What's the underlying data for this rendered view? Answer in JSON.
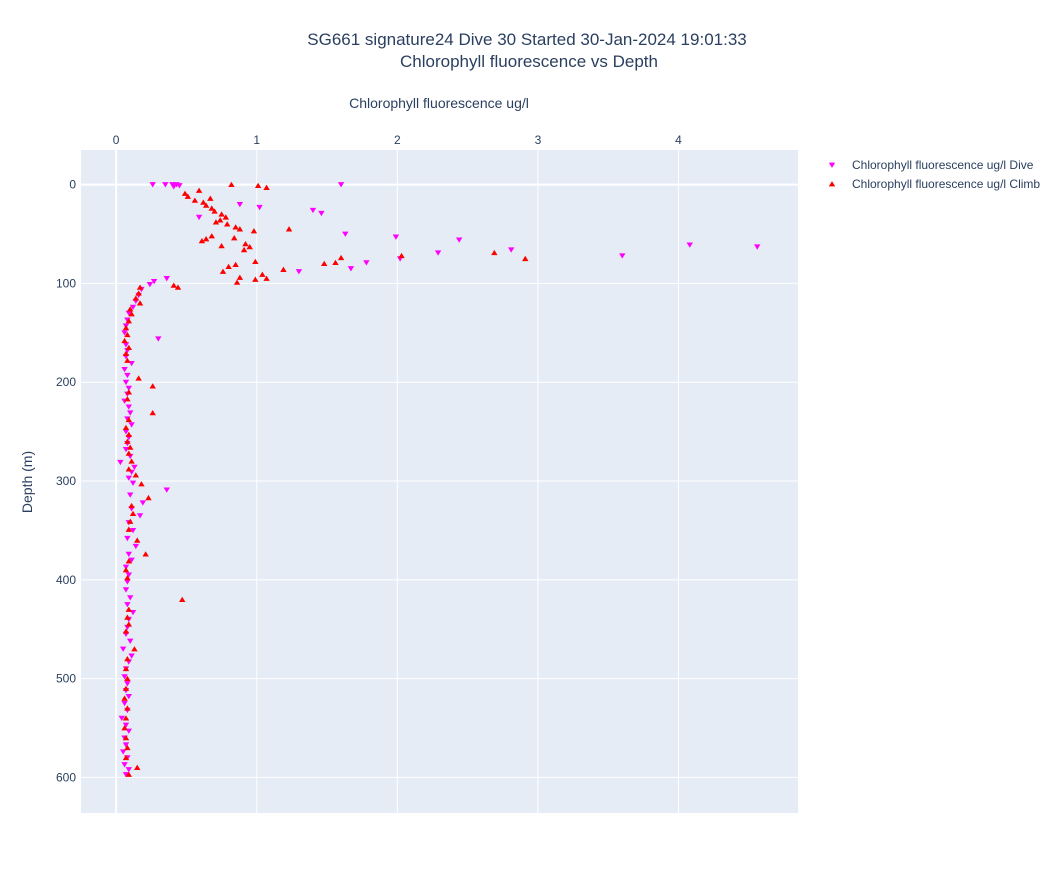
{
  "chart_data": {
    "type": "scatter",
    "title": "SG661 signature24 Dive 30 Started 30-Jan-2024 19:01:33",
    "subtitle": "Chlorophyll fluorescence vs Depth",
    "xlabel": "Chlorophyll fluorescence ug/l",
    "ylabel": "Depth (m)",
    "xlim": [
      -0.25,
      4.85
    ],
    "ylim": [
      -35,
      636
    ],
    "x_axis_position": "top",
    "y_axis_reversed": true,
    "grid": true,
    "legend_position": "top-right",
    "xticks": [
      0,
      1,
      2,
      3,
      4
    ],
    "yticks": [
      0,
      100,
      200,
      300,
      400,
      500,
      600
    ],
    "series": [
      {
        "name": "Chlorophyll fluorescence ug/l Dive",
        "color": "#ff00ff",
        "marker": "triangle-down",
        "points": [
          [
            0.26,
            0
          ],
          [
            0.35,
            0
          ],
          [
            0.4,
            0
          ],
          [
            0.41,
            2
          ],
          [
            0.43,
            0
          ],
          [
            0.45,
            1
          ],
          [
            1.6,
            0
          ],
          [
            0.88,
            20
          ],
          [
            1.02,
            23
          ],
          [
            1.4,
            26
          ],
          [
            1.46,
            29
          ],
          [
            0.59,
            33
          ],
          [
            1.63,
            50
          ],
          [
            1.99,
            53
          ],
          [
            2.44,
            56
          ],
          [
            4.08,
            61
          ],
          [
            4.56,
            63
          ],
          [
            2.81,
            66
          ],
          [
            2.29,
            69
          ],
          [
            3.6,
            72
          ],
          [
            2.02,
            75
          ],
          [
            1.78,
            79
          ],
          [
            1.67,
            85
          ],
          [
            1.3,
            88
          ],
          [
            0.36,
            95
          ],
          [
            0.27,
            98
          ],
          [
            0.24,
            101
          ],
          [
            0.18,
            106
          ],
          [
            0.16,
            112
          ],
          [
            0.14,
            118
          ],
          [
            0.12,
            124
          ],
          [
            0.09,
            130
          ],
          [
            0.08,
            137
          ],
          [
            0.07,
            143
          ],
          [
            0.06,
            150
          ],
          [
            0.3,
            156
          ],
          [
            0.07,
            162
          ],
          [
            0.08,
            168
          ],
          [
            0.07,
            174
          ],
          [
            0.11,
            181
          ],
          [
            0.06,
            187
          ],
          [
            0.08,
            193
          ],
          [
            0.07,
            200
          ],
          [
            0.09,
            206
          ],
          [
            0.08,
            212
          ],
          [
            0.06,
            219
          ],
          [
            0.09,
            225
          ],
          [
            0.1,
            231
          ],
          [
            0.08,
            237
          ],
          [
            0.11,
            243
          ],
          [
            0.07,
            250
          ],
          [
            0.09,
            256
          ],
          [
            0.08,
            262
          ],
          [
            0.07,
            268
          ],
          [
            0.1,
            275
          ],
          [
            0.03,
            281
          ],
          [
            0.13,
            286
          ],
          [
            0.11,
            291
          ],
          [
            0.09,
            297
          ],
          [
            0.12,
            302
          ],
          [
            0.36,
            309
          ],
          [
            0.1,
            314
          ],
          [
            0.19,
            322
          ],
          [
            0.11,
            328
          ],
          [
            0.17,
            335
          ],
          [
            0.09,
            342
          ],
          [
            0.12,
            350
          ],
          [
            0.08,
            358
          ],
          [
            0.14,
            366
          ],
          [
            0.09,
            374
          ],
          [
            0.11,
            380
          ],
          [
            0.07,
            387
          ],
          [
            0.09,
            395
          ],
          [
            0.08,
            402
          ],
          [
            0.07,
            410
          ],
          [
            0.1,
            418
          ],
          [
            0.08,
            425
          ],
          [
            0.12,
            433
          ],
          [
            0.09,
            440
          ],
          [
            0.08,
            448
          ],
          [
            0.07,
            455
          ],
          [
            0.1,
            462
          ],
          [
            0.05,
            470
          ],
          [
            0.11,
            477
          ],
          [
            0.09,
            483
          ],
          [
            0.07,
            490
          ],
          [
            0.06,
            498
          ],
          [
            0.08,
            505
          ],
          [
            0.07,
            512
          ],
          [
            0.09,
            518
          ],
          [
            0.06,
            525
          ],
          [
            0.08,
            532
          ],
          [
            0.04,
            540
          ],
          [
            0.07,
            547
          ],
          [
            0.09,
            553
          ],
          [
            0.06,
            560
          ],
          [
            0.07,
            567
          ],
          [
            0.05,
            574
          ],
          [
            0.08,
            580
          ],
          [
            0.06,
            587
          ],
          [
            0.09,
            592
          ],
          [
            0.07,
            597
          ]
        ]
      },
      {
        "name": "Chlorophyll fluorescence ug/l Climb",
        "color": "#ff0000",
        "marker": "triangle-up",
        "points": [
          [
            0.82,
            0
          ],
          [
            1.01,
            1
          ],
          [
            1.07,
            3
          ],
          [
            0.59,
            6
          ],
          [
            0.49,
            9
          ],
          [
            0.51,
            12
          ],
          [
            0.67,
            14
          ],
          [
            0.56,
            16
          ],
          [
            0.62,
            18
          ],
          [
            0.64,
            21
          ],
          [
            0.68,
            24
          ],
          [
            0.7,
            27
          ],
          [
            0.75,
            30
          ],
          [
            0.78,
            33
          ],
          [
            0.74,
            36
          ],
          [
            0.71,
            38
          ],
          [
            0.79,
            40
          ],
          [
            0.85,
            43
          ],
          [
            0.88,
            45
          ],
          [
            0.98,
            47
          ],
          [
            1.23,
            45
          ],
          [
            0.68,
            52
          ],
          [
            0.84,
            54
          ],
          [
            0.61,
            57
          ],
          [
            0.64,
            55
          ],
          [
            0.92,
            60
          ],
          [
            0.75,
            62
          ],
          [
            0.95,
            63
          ],
          [
            0.91,
            66
          ],
          [
            2.69,
            69
          ],
          [
            2.03,
            72
          ],
          [
            1.6,
            74
          ],
          [
            2.91,
            75
          ],
          [
            1.48,
            80
          ],
          [
            1.56,
            79
          ],
          [
            0.99,
            78
          ],
          [
            0.85,
            81
          ],
          [
            0.8,
            83
          ],
          [
            1.19,
            86
          ],
          [
            0.76,
            88
          ],
          [
            1.04,
            91
          ],
          [
            0.88,
            94
          ],
          [
            1.07,
            95
          ],
          [
            0.99,
            96
          ],
          [
            0.86,
            99
          ],
          [
            0.41,
            102
          ],
          [
            0.44,
            104
          ],
          [
            0.17,
            104
          ],
          [
            0.16,
            110
          ],
          [
            0.14,
            115
          ],
          [
            0.17,
            120
          ],
          [
            0.1,
            126
          ],
          [
            0.11,
            131
          ],
          [
            0.09,
            138
          ],
          [
            0.07,
            145
          ],
          [
            0.08,
            152
          ],
          [
            0.06,
            158
          ],
          [
            0.09,
            165
          ],
          [
            0.07,
            171
          ],
          [
            0.08,
            178
          ],
          [
            0.16,
            196
          ],
          [
            0.26,
            204
          ],
          [
            0.09,
            210
          ],
          [
            0.08,
            217
          ],
          [
            0.26,
            231
          ],
          [
            0.09,
            238
          ],
          [
            0.07,
            246
          ],
          [
            0.09,
            253
          ],
          [
            0.08,
            260
          ],
          [
            0.1,
            266
          ],
          [
            0.09,
            272
          ],
          [
            0.11,
            280
          ],
          [
            0.09,
            288
          ],
          [
            0.14,
            294
          ],
          [
            0.18,
            303
          ],
          [
            0.23,
            317
          ],
          [
            0.11,
            325
          ],
          [
            0.12,
            333
          ],
          [
            0.1,
            341
          ],
          [
            0.09,
            349
          ],
          [
            0.15,
            360
          ],
          [
            0.21,
            374
          ],
          [
            0.09,
            381
          ],
          [
            0.07,
            390
          ],
          [
            0.08,
            398
          ],
          [
            0.47,
            420
          ],
          [
            0.09,
            430
          ],
          [
            0.08,
            438
          ],
          [
            0.09,
            445
          ],
          [
            0.07,
            452
          ],
          [
            0.13,
            470
          ],
          [
            0.08,
            480
          ],
          [
            0.07,
            490
          ],
          [
            0.08,
            500
          ],
          [
            0.07,
            510
          ],
          [
            0.06,
            520
          ],
          [
            0.08,
            530
          ],
          [
            0.07,
            540
          ],
          [
            0.06,
            550
          ],
          [
            0.07,
            560
          ],
          [
            0.08,
            570
          ],
          [
            0.07,
            580
          ],
          [
            0.15,
            590
          ],
          [
            0.09,
            597
          ]
        ]
      }
    ]
  }
}
